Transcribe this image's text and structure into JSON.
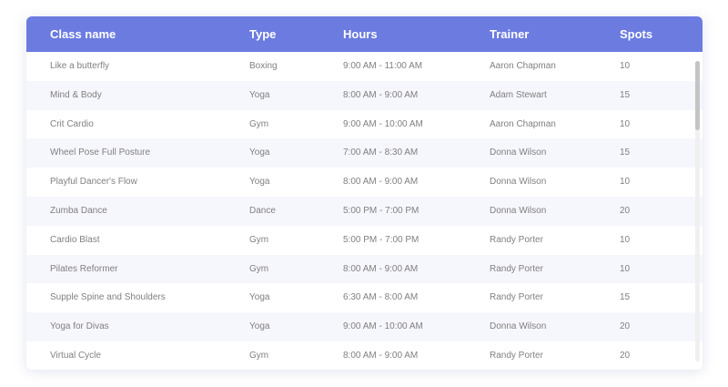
{
  "table": {
    "headers": {
      "class_name": "Class name",
      "type": "Type",
      "hours": "Hours",
      "trainer": "Trainer",
      "spots": "Spots"
    },
    "rows": [
      {
        "class_name": "Like a butterfly",
        "type": "Boxing",
        "hours": "9:00 AM - 11:00 AM",
        "trainer": "Aaron Chapman",
        "spots": "10"
      },
      {
        "class_name": "Mind & Body",
        "type": "Yoga",
        "hours": "8:00 AM - 9:00 AM",
        "trainer": "Adam Stewart",
        "spots": "15"
      },
      {
        "class_name": "Crit Cardio",
        "type": "Gym",
        "hours": "9:00 AM - 10:00 AM",
        "trainer": "Aaron Chapman",
        "spots": "10"
      },
      {
        "class_name": "Wheel Pose Full Posture",
        "type": "Yoga",
        "hours": "7:00 AM - 8:30 AM",
        "trainer": "Donna Wilson",
        "spots": "15"
      },
      {
        "class_name": "Playful Dancer's Flow",
        "type": "Yoga",
        "hours": "8:00 AM - 9:00 AM",
        "trainer": "Donna Wilson",
        "spots": "10"
      },
      {
        "class_name": "Zumba Dance",
        "type": "Dance",
        "hours": "5:00 PM - 7:00 PM",
        "trainer": "Donna Wilson",
        "spots": "20"
      },
      {
        "class_name": "Cardio Blast",
        "type": "Gym",
        "hours": "5:00 PM - 7:00 PM",
        "trainer": "Randy Porter",
        "spots": "10"
      },
      {
        "class_name": "Pilates Reformer",
        "type": "Gym",
        "hours": "8:00 AM - 9:00 AM",
        "trainer": "Randy Porter",
        "spots": "10"
      },
      {
        "class_name": "Supple Spine and Shoulders",
        "type": "Yoga",
        "hours": "6:30 AM - 8:00 AM",
        "trainer": "Randy Porter",
        "spots": "15"
      },
      {
        "class_name": "Yoga for Divas",
        "type": "Yoga",
        "hours": "9:00 AM - 10:00 AM",
        "trainer": "Donna Wilson",
        "spots": "20"
      },
      {
        "class_name": "Virtual Cycle",
        "type": "Gym",
        "hours": "8:00 AM - 9:00 AM",
        "trainer": "Randy Porter",
        "spots": "20"
      }
    ]
  },
  "colors": {
    "header_bg": "#6b7be0",
    "row_alt_bg": "#f6f6fd",
    "text": "#808080"
  }
}
